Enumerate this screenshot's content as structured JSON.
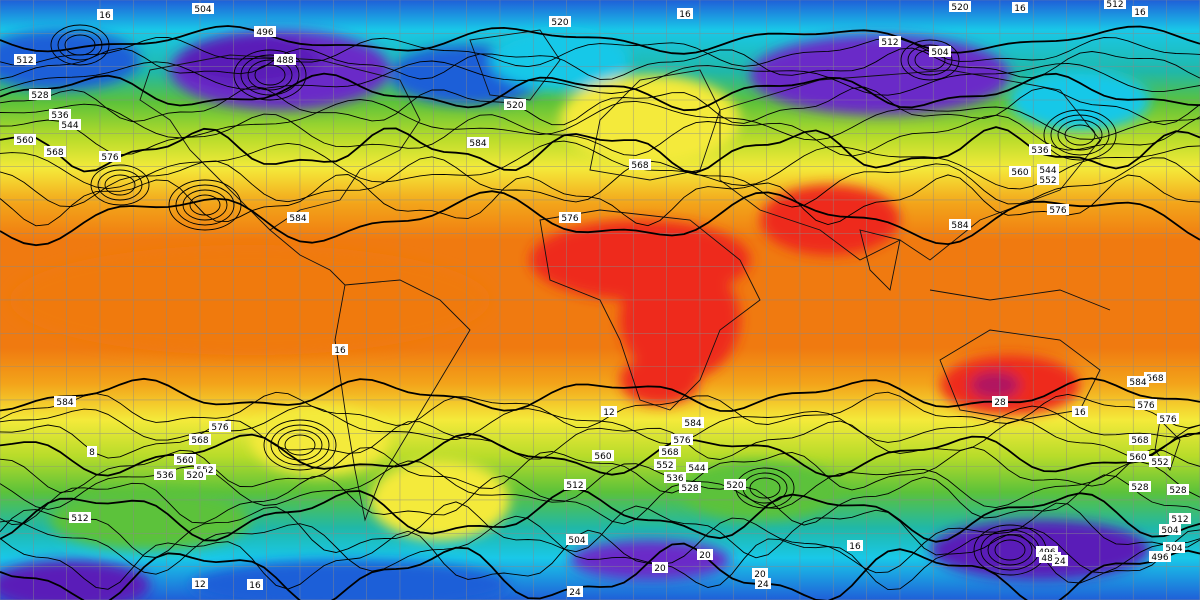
{
  "map": {
    "projection": "equirectangular",
    "field_shading": "temperature",
    "contour_field": "geopotential height",
    "colors": {
      "violet": "#5a1fb8",
      "purple": "#7a3ad8",
      "blue": "#1f5fd8",
      "cyan": "#19c8e8",
      "teal": "#20b8a8",
      "green": "#5cc23a",
      "lime": "#b8dc2a",
      "yellow": "#f4ea3a",
      "lightyellow": "#fbf6a8",
      "orange": "#f3a41a",
      "darkorange": "#f07a10",
      "red": "#ee2a1a",
      "darkred": "#c41820",
      "magenta": "#b01860",
      "contour": "#000000",
      "grid": "#8a8a8a",
      "coast": "#111111"
    },
    "contour_labels": [
      {
        "text": "504"
      },
      {
        "text": "16"
      },
      {
        "text": "520"
      },
      {
        "text": "16"
      },
      {
        "text": "520"
      },
      {
        "text": "16"
      },
      {
        "text": "512"
      },
      {
        "text": "16"
      },
      {
        "text": "496"
      },
      {
        "text": "488"
      },
      {
        "text": "512"
      },
      {
        "text": "504"
      },
      {
        "text": "512"
      },
      {
        "text": "520"
      },
      {
        "text": "560"
      },
      {
        "text": "528"
      },
      {
        "text": "536"
      },
      {
        "text": "544"
      },
      {
        "text": "568"
      },
      {
        "text": "576"
      },
      {
        "text": "584"
      },
      {
        "text": "576"
      },
      {
        "text": "568"
      },
      {
        "text": "560"
      },
      {
        "text": "576"
      },
      {
        "text": "584"
      },
      {
        "text": "584"
      },
      {
        "text": "576"
      },
      {
        "text": "568"
      },
      {
        "text": "560"
      },
      {
        "text": "536"
      },
      {
        "text": "544"
      },
      {
        "text": "552"
      },
      {
        "text": "584"
      },
      {
        "text": "576"
      },
      {
        "text": "568"
      },
      {
        "text": "560"
      },
      {
        "text": "552"
      },
      {
        "text": "544"
      },
      {
        "text": "536"
      },
      {
        "text": "528"
      },
      {
        "text": "520"
      },
      {
        "text": "512"
      },
      {
        "text": "504"
      },
      {
        "text": "496"
      },
      {
        "text": "488"
      },
      {
        "text": "584"
      },
      {
        "text": "576"
      },
      {
        "text": "568"
      },
      {
        "text": "560"
      },
      {
        "text": "552"
      },
      {
        "text": "536"
      },
      {
        "text": "520"
      },
      {
        "text": "512"
      },
      {
        "text": "504"
      },
      {
        "text": "24"
      },
      {
        "text": "20"
      },
      {
        "text": "16"
      },
      {
        "text": "12"
      },
      {
        "text": "20"
      },
      {
        "text": "16"
      },
      {
        "text": "24"
      },
      {
        "text": "28"
      },
      {
        "text": "496"
      },
      {
        "text": "504"
      },
      {
        "text": "528"
      },
      {
        "text": "584"
      },
      {
        "text": "576"
      },
      {
        "text": "568"
      },
      {
        "text": "552"
      },
      {
        "text": "528"
      },
      {
        "text": "512"
      },
      {
        "text": "16"
      },
      {
        "text": "20"
      },
      {
        "text": "24"
      },
      {
        "text": "12"
      },
      {
        "text": "16"
      },
      {
        "text": "8"
      }
    ]
  }
}
